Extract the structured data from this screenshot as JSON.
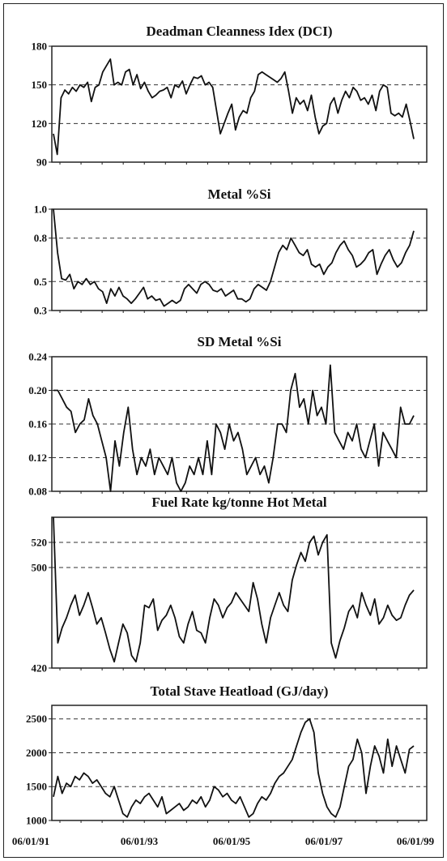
{
  "chart_data": [
    {
      "type": "line",
      "title": "Deadman Cleanness Idex (DCI)",
      "ylim": [
        90,
        180
      ],
      "yticks": [
        90,
        120,
        150,
        180
      ],
      "grid_y": [
        120,
        150
      ],
      "series": [
        {
          "values": [
            112,
            96,
            140,
            146,
            143,
            148,
            145,
            150,
            148,
            152,
            137,
            148,
            150,
            160,
            165,
            170,
            150,
            152,
            150,
            160,
            162,
            150,
            158,
            147,
            152,
            145,
            140,
            142,
            145,
            146,
            148,
            140,
            150,
            148,
            153,
            143,
            150,
            156,
            155,
            157,
            150,
            152,
            148,
            130,
            112,
            120,
            128,
            135,
            115,
            125,
            130,
            128,
            140,
            145,
            158,
            160,
            158,
            156,
            154,
            152,
            155,
            160,
            145,
            128,
            140,
            135,
            138,
            130,
            142,
            125,
            112,
            118,
            120,
            135,
            140,
            128,
            138,
            145,
            140,
            148,
            145,
            138,
            140,
            135,
            142,
            130,
            145,
            150,
            148,
            128,
            126,
            128,
            125,
            135,
            122,
            108
          ]
        }
      ]
    },
    {
      "type": "line",
      "title": "Metal %Si",
      "ylim": [
        0.3,
        1.0
      ],
      "yticks": [
        0.3,
        0.5,
        0.8,
        1.0
      ],
      "grid_y": [
        0.5,
        0.8
      ],
      "series": [
        {
          "values": [
            1.0,
            0.7,
            0.52,
            0.51,
            0.55,
            0.45,
            0.5,
            0.48,
            0.52,
            0.48,
            0.5,
            0.45,
            0.43,
            0.35,
            0.45,
            0.4,
            0.46,
            0.4,
            0.38,
            0.35,
            0.38,
            0.42,
            0.46,
            0.38,
            0.4,
            0.37,
            0.38,
            0.33,
            0.35,
            0.37,
            0.35,
            0.37,
            0.45,
            0.48,
            0.45,
            0.42,
            0.48,
            0.5,
            0.48,
            0.44,
            0.43,
            0.45,
            0.4,
            0.42,
            0.44,
            0.38,
            0.38,
            0.36,
            0.38,
            0.45,
            0.48,
            0.46,
            0.44,
            0.5,
            0.6,
            0.7,
            0.75,
            0.72,
            0.8,
            0.75,
            0.7,
            0.68,
            0.72,
            0.62,
            0.6,
            0.62,
            0.55,
            0.6,
            0.63,
            0.7,
            0.75,
            0.78,
            0.72,
            0.68,
            0.6,
            0.62,
            0.65,
            0.7,
            0.72,
            0.55,
            0.62,
            0.68,
            0.72,
            0.65,
            0.6,
            0.63,
            0.7,
            0.75,
            0.85
          ]
        }
      ]
    },
    {
      "type": "line",
      "title": "SD Metal %Si",
      "ylim": [
        0.08,
        0.24
      ],
      "yticks": [
        0.08,
        0.12,
        0.16,
        0.2,
        0.24
      ],
      "grid_y": [
        0.12,
        0.16,
        0.2
      ],
      "series": [
        {
          "values": [
            0.2,
            0.2,
            0.19,
            0.18,
            0.175,
            0.15,
            0.16,
            0.165,
            0.19,
            0.17,
            0.16,
            0.14,
            0.12,
            0.08,
            0.14,
            0.11,
            0.15,
            0.18,
            0.13,
            0.1,
            0.12,
            0.11,
            0.13,
            0.1,
            0.12,
            0.11,
            0.1,
            0.12,
            0.09,
            0.08,
            0.09,
            0.11,
            0.1,
            0.12,
            0.1,
            0.14,
            0.1,
            0.16,
            0.15,
            0.13,
            0.16,
            0.14,
            0.15,
            0.13,
            0.1,
            0.11,
            0.12,
            0.1,
            0.11,
            0.09,
            0.12,
            0.16,
            0.16,
            0.15,
            0.2,
            0.22,
            0.18,
            0.19,
            0.16,
            0.2,
            0.17,
            0.18,
            0.16,
            0.23,
            0.15,
            0.14,
            0.13,
            0.15,
            0.14,
            0.16,
            0.13,
            0.12,
            0.14,
            0.16,
            0.11,
            0.15,
            0.14,
            0.13,
            0.12,
            0.18,
            0.16,
            0.16,
            0.17
          ]
        }
      ]
    },
    {
      "type": "line",
      "title": "Fuel Rate kg/tonne Hot Metal",
      "ylim": [
        420,
        540
      ],
      "yticks": [
        420,
        500,
        520
      ],
      "grid_y": [
        500,
        520
      ],
      "series": [
        {
          "values": [
            540,
            440,
            452,
            460,
            470,
            478,
            462,
            470,
            480,
            468,
            455,
            460,
            448,
            435,
            425,
            440,
            455,
            448,
            430,
            425,
            440,
            470,
            468,
            475,
            450,
            458,
            462,
            470,
            460,
            445,
            440,
            455,
            465,
            450,
            448,
            440,
            460,
            475,
            470,
            460,
            468,
            472,
            480,
            475,
            470,
            465,
            488,
            475,
            455,
            440,
            460,
            470,
            480,
            470,
            465,
            490,
            502,
            512,
            505,
            520,
            525,
            510,
            520,
            526,
            440,
            428,
            442,
            452,
            465,
            470,
            460,
            480,
            470,
            462,
            475,
            455,
            460,
            470,
            462,
            458,
            460,
            470,
            478,
            482
          ]
        }
      ]
    },
    {
      "type": "line",
      "title": "Total Stave Heatload (GJ/day)",
      "ylim": [
        1000,
        2700
      ],
      "yticks": [
        1000,
        1500,
        2000,
        2500
      ],
      "grid_y": [
        1500,
        2000,
        2500
      ],
      "series": [
        {
          "values": [
            1350,
            1650,
            1400,
            1550,
            1500,
            1650,
            1600,
            1700,
            1650,
            1550,
            1600,
            1500,
            1400,
            1350,
            1500,
            1300,
            1100,
            1050,
            1200,
            1300,
            1250,
            1350,
            1400,
            1300,
            1200,
            1350,
            1100,
            1150,
            1200,
            1250,
            1150,
            1200,
            1300,
            1250,
            1350,
            1200,
            1300,
            1500,
            1450,
            1350,
            1400,
            1300,
            1250,
            1350,
            1200,
            1050,
            1100,
            1250,
            1350,
            1300,
            1400,
            1550,
            1650,
            1700,
            1800,
            1900,
            2100,
            2300,
            2450,
            2500,
            2300,
            1700,
            1400,
            1200,
            1100,
            1050,
            1200,
            1500,
            1800,
            1900,
            2200,
            2000,
            1400,
            1800,
            2100,
            1950,
            1700,
            2200,
            1800,
            2100,
            1900,
            1700,
            2050,
            2100
          ]
        }
      ]
    }
  ],
  "x_axis": {
    "labels": [
      "06/01/91",
      "06/01/93",
      "06/01/95",
      "06/01/97",
      "06/01/99"
    ]
  }
}
